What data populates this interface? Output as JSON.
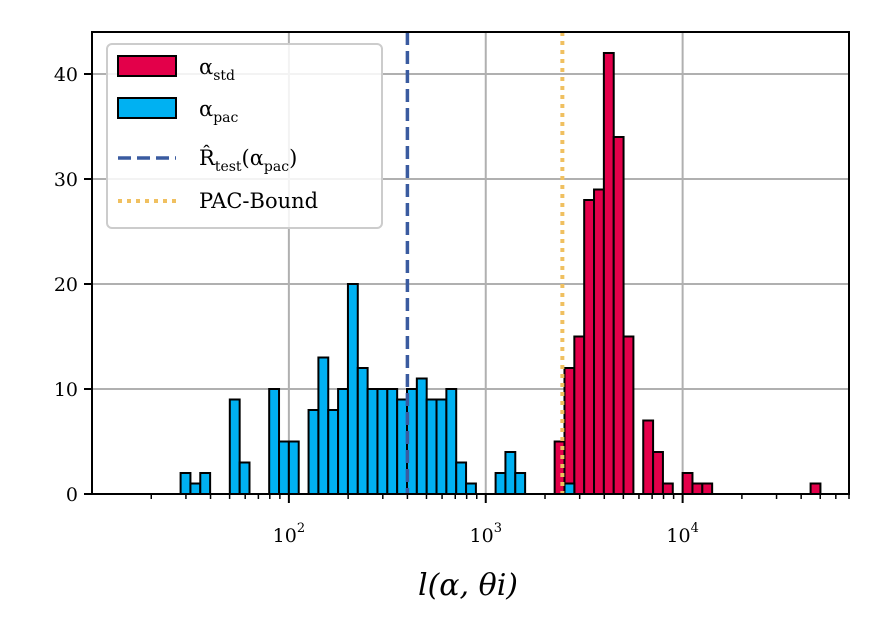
{
  "chart_data": {
    "type": "bar",
    "xscale": "log",
    "xlim": [
      10,
      70000
    ],
    "ylim": [
      0,
      44
    ],
    "yticks": [
      0,
      10,
      20,
      30,
      40
    ],
    "xticks": [
      {
        "value": 100,
        "base": "10",
        "exp": "2"
      },
      {
        "value": 1000,
        "base": "10",
        "exp": "3"
      },
      {
        "value": 10000,
        "base": "10",
        "exp": "4"
      }
    ],
    "xlabel": "l(α, θi)",
    "grid": true,
    "legend_position": "top-left",
    "legend": [
      {
        "kind": "bar",
        "symbol": "α",
        "sub": "std",
        "color": "#e3004a"
      },
      {
        "kind": "bar",
        "symbol": "α",
        "sub": "pac",
        "color": "#00b1f2"
      },
      {
        "kind": "dashed",
        "symbol": "R̂",
        "sub": "test",
        "arg": "(α",
        "arg_sub": "pac",
        "close": ")",
        "color": "#3a5ba0"
      },
      {
        "kind": "dotted",
        "text": "PAC-Bound",
        "color": "#f0c060"
      }
    ],
    "series": [
      {
        "name": "α_std",
        "color": "#e3004a",
        "bins_log10_edges": [
          1.4,
          4.75
        ],
        "bin_count": 67,
        "values": [
          0,
          0,
          0,
          0,
          0,
          0,
          0,
          0,
          0,
          0,
          0,
          0,
          0,
          0,
          0,
          0,
          0,
          0,
          0,
          0,
          0,
          0,
          0,
          0,
          0,
          0,
          0,
          0,
          0,
          0,
          0,
          0,
          0,
          0,
          0,
          0,
          0,
          0,
          0,
          5,
          12,
          15,
          28,
          29,
          42,
          34,
          15,
          0,
          7,
          4,
          1,
          0,
          2,
          1,
          1,
          0,
          0,
          0,
          0,
          0,
          0,
          0,
          0,
          0,
          0,
          1,
          0
        ]
      },
      {
        "name": "α_pac",
        "color": "#00b1f2",
        "bins_log10_edges": [
          1.35,
          4.75
        ],
        "bin_count": 68,
        "values": [
          0,
          0,
          2,
          1,
          2,
          0,
          0,
          9,
          3,
          0,
          0,
          10,
          5,
          5,
          0,
          8,
          13,
          8,
          10,
          20,
          12,
          10,
          10,
          10,
          9,
          10,
          11,
          9,
          9,
          10,
          3,
          1,
          0,
          0,
          2,
          4,
          2,
          0,
          0,
          0,
          0,
          1,
          0,
          0,
          0,
          0,
          0,
          0,
          0,
          0,
          0,
          0,
          0,
          0,
          0,
          0,
          0,
          0,
          0,
          0,
          0,
          0,
          0,
          0,
          0,
          0,
          0,
          0
        ]
      }
    ],
    "vlines": [
      {
        "name": "R_test(α_pac)",
        "x": 400,
        "style": "dashed",
        "color": "#3a5ba0"
      },
      {
        "name": "PAC-Bound",
        "x": 2450,
        "style": "dotted",
        "color": "#f0c060"
      }
    ]
  }
}
